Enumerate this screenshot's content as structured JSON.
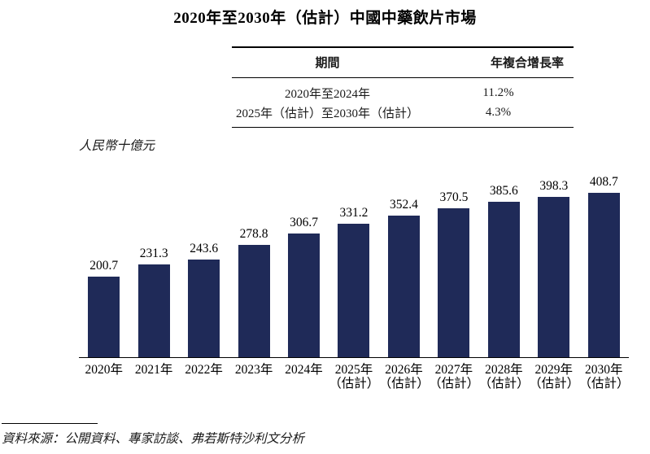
{
  "title": "2020年至2030年（估計）中國中藥飲片市場",
  "cagr_table": {
    "headers": [
      "期間",
      "年複合增長率"
    ],
    "rows": [
      {
        "period": "2020年至2024年",
        "cagr": "11.2%"
      },
      {
        "period": "2025年（估計）至2030年（估計）",
        "cagr": "4.3%"
      }
    ]
  },
  "chart_data": {
    "type": "bar",
    "title": "2020年至2030年（估計）中國中藥飲片市場",
    "ylabel": "人民幣十億元",
    "xlabel": "",
    "categories": [
      {
        "year": "2020年",
        "note": ""
      },
      {
        "year": "2021年",
        "note": ""
      },
      {
        "year": "2022年",
        "note": ""
      },
      {
        "year": "2023年",
        "note": ""
      },
      {
        "year": "2024年",
        "note": ""
      },
      {
        "year": "2025年",
        "note": "（估計）"
      },
      {
        "year": "2026年",
        "note": "（估計）"
      },
      {
        "year": "2027年",
        "note": "（估計）"
      },
      {
        "year": "2028年",
        "note": "（估計）"
      },
      {
        "year": "2029年",
        "note": "（估計）"
      },
      {
        "year": "2030年",
        "note": "（估計）"
      }
    ],
    "values": [
      200.7,
      231.3,
      243.6,
      278.8,
      306.7,
      331.2,
      352.4,
      370.5,
      385.6,
      398.3,
      408.7
    ],
    "bar_color": "#1f2a58",
    "ylim": [
      0,
      440
    ],
    "grid": false,
    "legend": "none",
    "y_axis_shown": false
  },
  "source": "資料來源：公開資料、專家訪談、弗若斯特沙利文分析"
}
